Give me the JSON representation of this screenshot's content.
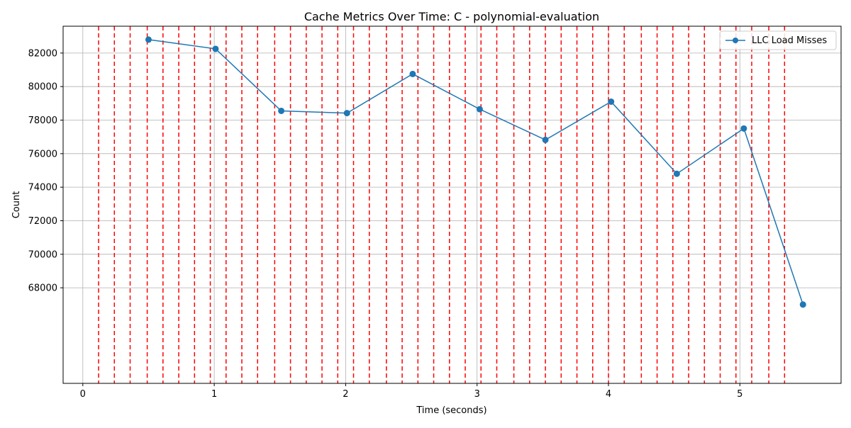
{
  "chart_data": {
    "type": "line",
    "title": "Cache Metrics Over Time: C - polynomial-evaluation",
    "xlabel": "Time (seconds)",
    "ylabel": "Count",
    "xlim": [
      -0.15,
      5.77
    ],
    "ylim": [
      62300,
      83600
    ],
    "xticks": [
      0,
      1,
      2,
      3,
      4,
      5
    ],
    "xtick_labels": [
      "0",
      "1",
      "2",
      "3",
      "4",
      "5"
    ],
    "yticks": [
      68000,
      70000,
      72000,
      74000,
      76000,
      78000,
      80000,
      82000
    ],
    "ytick_labels": [
      "68000",
      "70000",
      "72000",
      "74000",
      "76000",
      "78000",
      "80000",
      "82000"
    ],
    "grid": true,
    "legend_position": "upper right",
    "series": [
      {
        "name": "LLC Load Misses",
        "color": "#1f77b4",
        "marker": "circle",
        "x": [
          0.5,
          1.01,
          1.51,
          2.01,
          2.51,
          3.02,
          3.52,
          4.02,
          4.52,
          5.03,
          5.48
        ],
        "y": [
          82800,
          82250,
          78550,
          78420,
          80750,
          78650,
          76820,
          79100,
          74800,
          77500,
          67000
        ]
      }
    ],
    "vertical_lines": {
      "color": "#ff0000",
      "style": "dashed",
      "x": [
        0.12,
        0.24,
        0.36,
        0.49,
        0.61,
        0.73,
        0.85,
        0.97,
        1.09,
        1.21,
        1.33,
        1.46,
        1.58,
        1.7,
        1.82,
        1.94,
        2.06,
        2.18,
        2.31,
        2.43,
        2.55,
        2.67,
        2.79,
        2.91,
        3.03,
        3.15,
        3.28,
        3.4,
        3.52,
        3.64,
        3.76,
        3.88,
        4.0,
        4.12,
        4.25,
        4.37,
        4.49,
        4.61,
        4.73,
        4.85,
        4.97,
        5.09,
        5.22,
        5.34
      ]
    }
  }
}
